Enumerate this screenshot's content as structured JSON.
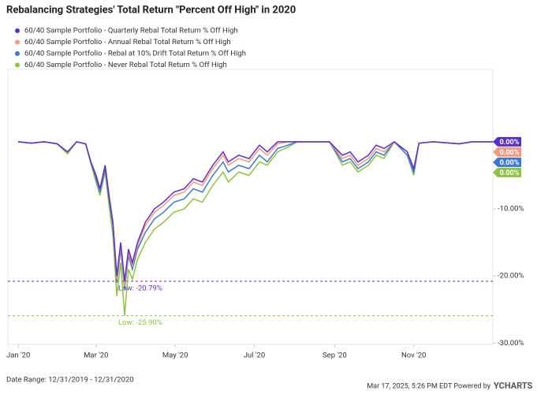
{
  "chart_data": {
    "type": "line",
    "title": "Rebalancing Strategies' Total Return \"Percent Off High\" in 2020",
    "x": [
      0,
      10,
      20,
      30,
      38,
      45,
      52,
      56,
      60,
      63,
      67,
      70,
      73,
      76,
      79,
      82,
      85,
      88,
      92,
      98,
      105,
      112,
      120,
      128,
      135,
      142,
      150,
      158,
      162,
      170,
      178,
      186,
      192,
      200,
      208,
      215,
      225,
      240,
      250,
      256,
      262,
      270,
      276,
      282,
      290,
      300,
      305,
      309,
      320,
      340,
      350,
      366
    ],
    "series": [
      {
        "name": "60/40 Sample Portfolio - Quarterly Rebal Total Return % Off High",
        "color": "#5b2fc9",
        "last_label": "0.00%",
        "values": [
          0,
          -0.2,
          0,
          -0.3,
          -1.5,
          0,
          -0.3,
          -3,
          -5,
          -7,
          -3.5,
          -8,
          -12,
          -20,
          -15,
          -20.79,
          -16,
          -18,
          -15,
          -12,
          -10,
          -9,
          -7.5,
          -7,
          -5.5,
          -6,
          -3.5,
          -1.5,
          -3,
          -2,
          -2.5,
          -0.5,
          -1.5,
          0,
          0,
          0,
          0,
          0,
          -2,
          -1.5,
          -3,
          -2,
          -0.5,
          -1,
          0,
          -1.5,
          -4,
          -0.2,
          0,
          -0.3,
          0,
          0
        ]
      },
      {
        "name": "60/40 Sample Portfolio - Annual Rebal Total Return % Off High",
        "color": "#f4997a",
        "last_label": "0.00%",
        "values": [
          0,
          -0.2,
          0,
          -0.3,
          -1.5,
          0,
          -0.3,
          -3,
          -5,
          -7,
          -3.5,
          -8,
          -12,
          -20.5,
          -15.5,
          -21.5,
          -16.5,
          -18.5,
          -15.5,
          -12.5,
          -10.5,
          -9.5,
          -8,
          -7.5,
          -6,
          -6.5,
          -4,
          -2,
          -3.5,
          -2.5,
          -3,
          -1,
          -2,
          -0.3,
          0,
          0,
          0,
          0,
          -2.5,
          -2,
          -3.5,
          -2.5,
          -1,
          -1.5,
          0,
          -1.5,
          -4,
          -0.2,
          0,
          -0.3,
          0,
          0
        ]
      },
      {
        "name": "60/40 Sample Portfolio - Rebal at 10% Drift Total Return % Off High",
        "color": "#3f78d4",
        "last_label": "0.00%",
        "values": [
          0,
          -0.2,
          0,
          -0.3,
          -1.5,
          0,
          -0.3,
          -3,
          -5.5,
          -7.5,
          -4,
          -8.5,
          -12.5,
          -21,
          -16,
          -22,
          -17,
          -19,
          -16,
          -13.5,
          -11.5,
          -10.5,
          -9,
          -8.5,
          -7,
          -7.5,
          -5,
          -3,
          -4.5,
          -3.5,
          -4,
          -2,
          -3,
          -1,
          -0.5,
          0,
          0,
          0,
          -3,
          -2.5,
          -4,
          -3,
          -1.5,
          -2,
          0,
          -2,
          -4.5,
          -0.2,
          0,
          -0.3,
          0,
          0
        ]
      },
      {
        "name": "60/40 Sample Portfolio - Never Rebal Total Return % Off High",
        "color": "#8cc43f",
        "last_label": "0.00%",
        "values": [
          0,
          -0.2,
          0,
          -0.3,
          -1.8,
          0,
          -0.3,
          -3.3,
          -6,
          -8,
          -4.5,
          -9.5,
          -14,
          -23,
          -18,
          -25.9,
          -19,
          -20.5,
          -17.5,
          -15,
          -13,
          -12,
          -10.5,
          -10,
          -8.5,
          -9,
          -6.5,
          -4.5,
          -6,
          -4.5,
          -5,
          -3,
          -3.5,
          -1.5,
          -0.8,
          0,
          0,
          0,
          -3.5,
          -3,
          -4.5,
          -3.5,
          -2,
          -2.5,
          0,
          -2,
          -5,
          -0.2,
          0,
          -0.3,
          0,
          0
        ]
      }
    ],
    "xlim": [
      -8,
      366
    ],
    "xticks": [
      {
        "value": 0,
        "label": "Jan '20"
      },
      {
        "value": 60,
        "label": "Mar '20"
      },
      {
        "value": 121,
        "label": "May '20"
      },
      {
        "value": 182,
        "label": "Jul '20"
      },
      {
        "value": 244,
        "label": "Sep '20"
      },
      {
        "value": 305,
        "label": "Nov '20"
      }
    ],
    "ylim": [
      -30.2,
      10.8
    ],
    "yticks": [
      {
        "value": -10,
        "label": "-10.00%"
      },
      {
        "value": -20,
        "label": "-20.00%"
      },
      {
        "value": -30,
        "label": "-30.00%"
      }
    ],
    "annotations": [
      {
        "value": -20.79,
        "label": "Low: -20.79%",
        "color": "#5b2fc9"
      },
      {
        "value": -25.9,
        "label": "Low: -25.90%",
        "color": "#8cc43f"
      }
    ],
    "footer": {
      "date_range": "Date Range: 12/31/2019 - 12/31/2020",
      "timestamp": "Mar 17, 2025, 5:26 PM EDT Powered by",
      "brand": "YCHARTS"
    }
  }
}
